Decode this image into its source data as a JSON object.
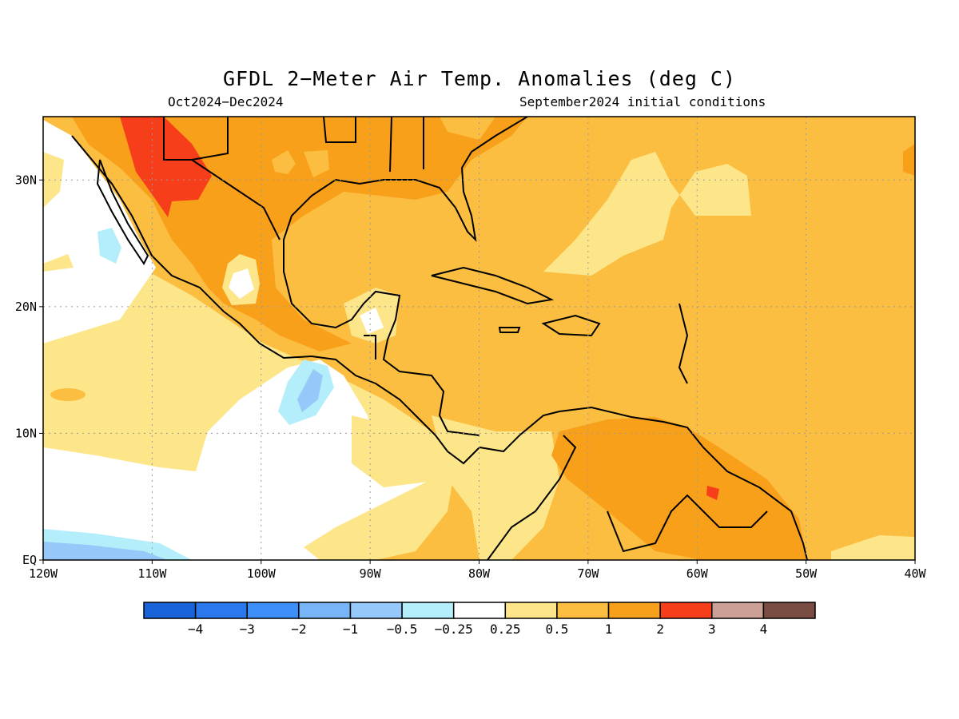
{
  "title": "GFDL 2−Meter Air Temp. Anomalies (deg C)",
  "period": "Oct2024−Dec2024",
  "initial_conditions": "September2024 initial conditions",
  "map": {
    "lon_range": [
      -120,
      -40
    ],
    "lat_range": [
      0,
      35
    ],
    "grid_lines": "dotted",
    "x_ticks": [
      {
        "lon": -120,
        "label": "120W"
      },
      {
        "lon": -110,
        "label": "110W"
      },
      {
        "lon": -100,
        "label": "100W"
      },
      {
        "lon": -90,
        "label": "90W"
      },
      {
        "lon": -80,
        "label": "80W"
      },
      {
        "lon": -70,
        "label": "70W"
      },
      {
        "lon": -60,
        "label": "60W"
      },
      {
        "lon": -50,
        "label": "50W"
      },
      {
        "lon": -40,
        "label": "40W"
      }
    ],
    "y_ticks": [
      {
        "lat": 0,
        "label": "EQ"
      },
      {
        "lat": 10,
        "label": "10N"
      },
      {
        "lat": 20,
        "label": "20N"
      },
      {
        "lat": 30,
        "label": "30N"
      }
    ]
  },
  "colorbar": {
    "colors": [
      "#1864d8",
      "#2a78ec",
      "#3c8ef8",
      "#78b4f8",
      "#96c8fa",
      "#b4eefa",
      "#ffffff",
      "#fde68a",
      "#fbbe41",
      "#f9a01b",
      "#f63f1a",
      "#cda095",
      "#7a4d42"
    ],
    "labels": [
      "−4",
      "−3",
      "−2",
      "−1",
      "−0.5",
      "−0.25",
      "0.25",
      "0.5",
      "1",
      "2",
      "3",
      "4"
    ]
  },
  "colors": {
    "white": "#ffffff",
    "pale_yellow": "#fde68a",
    "light_orange": "#fbbe41",
    "orange": "#f9a01b",
    "red": "#f63f1a",
    "light_blue": "#b4eefa",
    "mid_blue": "#96c8fa",
    "blue": "#78b4f8"
  }
}
